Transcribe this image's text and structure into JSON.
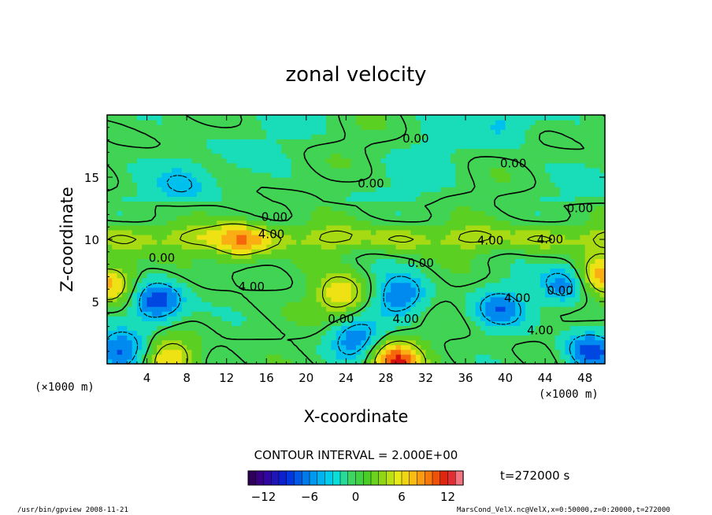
{
  "chart_data": {
    "type": "heatmap",
    "title": "zonal velocity",
    "xlabel": "X-coordinate",
    "ylabel": "Z-coordinate",
    "x_unit": "(×1000 m)",
    "z_unit": "(×1000 m)",
    "xlim": [
      0,
      50
    ],
    "ylim": [
      0,
      20
    ],
    "x_ticks": [
      "4",
      "8",
      "12",
      "16",
      "20",
      "24",
      "28",
      "32",
      "36",
      "40",
      "44",
      "48"
    ],
    "y_ticks": [
      "5",
      "10",
      "15"
    ],
    "contour_interval_text": "CONTOUR INTERVAL = 2.000E+00",
    "time_label": "t=272000 s",
    "contour_labels": [
      {
        "text": "0.00",
        "x": 31.0,
        "z": 18.1
      },
      {
        "text": "0.00",
        "x": 40.8,
        "z": 16.1
      },
      {
        "text": "0.00",
        "x": 26.5,
        "z": 14.5
      },
      {
        "text": "0.00",
        "x": 47.5,
        "z": 12.5
      },
      {
        "text": "0.00",
        "x": 16.8,
        "z": 11.8
      },
      {
        "text": "4.00",
        "x": 16.5,
        "z": 10.4
      },
      {
        "text": "4.00",
        "x": 38.5,
        "z": 9.9
      },
      {
        "text": "4.00",
        "x": 44.5,
        "z": 10.0
      },
      {
        "text": "0.00",
        "x": 5.5,
        "z": 8.5
      },
      {
        "text": "0.00",
        "x": 31.5,
        "z": 8.1
      },
      {
        "text": "4.00",
        "x": 14.5,
        "z": 6.2
      },
      {
        "text": "4.00",
        "x": 41.2,
        "z": 5.3
      },
      {
        "text": "0.00",
        "x": 45.5,
        "z": 5.9
      },
      {
        "text": "0.00",
        "x": 23.5,
        "z": 3.6
      },
      {
        "text": "4.00",
        "x": 30.0,
        "z": 3.6
      },
      {
        "text": "4.00",
        "x": 43.5,
        "z": 2.7
      }
    ],
    "colorbar": {
      "range": [
        -14,
        14
      ],
      "ticks": [
        "−12",
        "−6",
        "0",
        "6",
        "12"
      ],
      "tick_values": [
        -12,
        -6,
        0,
        6,
        12
      ]
    },
    "features": [
      {
        "kind": "jet_band",
        "z_center": 10.1,
        "amplitude": 4.5
      },
      {
        "kind": "max",
        "x": 13.2,
        "z": 9.8,
        "amp": 6.0
      },
      {
        "kind": "max",
        "x": 23.5,
        "z": 5.5,
        "amp": 7.0
      },
      {
        "kind": "max",
        "x": 29.0,
        "z": 0.2,
        "amp": 11.0
      },
      {
        "kind": "max",
        "x": 0.2,
        "z": 6.5,
        "amp": 8.0
      },
      {
        "kind": "max",
        "x": 49.8,
        "z": 7.0,
        "amp": 8.0
      },
      {
        "kind": "max",
        "x": 6.5,
        "z": 0.5,
        "amp": 7.0
      },
      {
        "kind": "min",
        "x": 5.0,
        "z": 5.0,
        "amp": -9.0
      },
      {
        "kind": "min",
        "x": 29.5,
        "z": 5.5,
        "amp": -7.0
      },
      {
        "kind": "min",
        "x": 25.0,
        "z": 2.0,
        "amp": -6.5
      },
      {
        "kind": "min",
        "x": 39.5,
        "z": 4.5,
        "amp": -6.0
      },
      {
        "kind": "min",
        "x": 46.0,
        "z": 6.3,
        "amp": -6.0
      },
      {
        "kind": "min",
        "x": 1.5,
        "z": 1.0,
        "amp": -8.0
      },
      {
        "kind": "min",
        "x": 48.5,
        "z": 1.0,
        "amp": -8.0
      },
      {
        "kind": "min",
        "x": 7.5,
        "z": 14.5,
        "amp": -3.0
      },
      {
        "kind": "min",
        "x": 40.0,
        "z": 19.3,
        "amp": -3.0
      }
    ]
  },
  "footer": {
    "left": "/usr/bin/gpview   2008-11-21",
    "right": "MarsCond_VelX.nc@VelX,x=0:50000,z=0:20000,t=272000"
  }
}
